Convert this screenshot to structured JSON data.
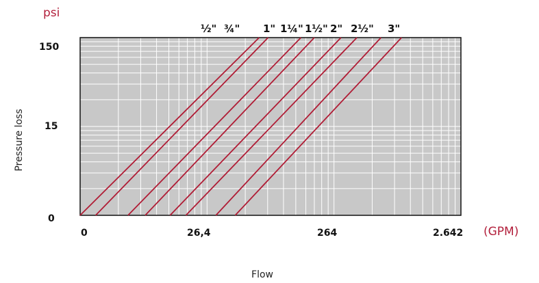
{
  "chart_data": {
    "type": "line",
    "x_unit": "(GPM)",
    "y_unit": "psi",
    "xlabel": "Flow",
    "ylabel": "Pressure loss",
    "x_scale": "log",
    "y_scale": "log",
    "x_ticks": [
      "0",
      "26,4",
      "264",
      "2.642"
    ],
    "y_ticks": [
      "150",
      "15",
      "0"
    ],
    "grid": true,
    "plot_background": "#c8c8c8",
    "line_color": "#b01c35",
    "series": [
      {
        "name": "½\"",
        "x": [
          2.64,
          68
        ],
        "y": [
          1.5,
          150
        ]
      },
      {
        "name": "¾\"",
        "x": [
          3.5,
          80
        ],
        "y": [
          1.5,
          150
        ]
      },
      {
        "name": "1\"",
        "x": [
          6.3,
          145
        ],
        "y": [
          1.5,
          150
        ]
      },
      {
        "name": "1¼\"",
        "x": [
          8.6,
          185
        ],
        "y": [
          1.5,
          150
        ]
      },
      {
        "name": "1½\"",
        "x": [
          13.5,
          300
        ],
        "y": [
          1.5,
          150
        ]
      },
      {
        "name": "2\"",
        "x": [
          18,
          400
        ],
        "y": [
          1.5,
          150
        ]
      },
      {
        "name": "2½\"",
        "x": [
          31,
          620
        ],
        "y": [
          1.5,
          150
        ]
      },
      {
        "name": "3\"",
        "x": [
          44,
          900
        ],
        "y": [
          1.5,
          150
        ]
      }
    ]
  }
}
